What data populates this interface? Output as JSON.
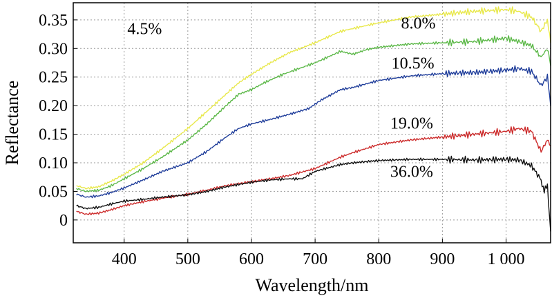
{
  "chart_data": {
    "type": "line",
    "xlabel": "Wavelength/nm",
    "ylabel": "Reflectance",
    "xlim": [
      320,
      1070
    ],
    "ylim": [
      -0.04,
      0.38
    ],
    "grid": true,
    "grid_style": "dotted",
    "x_ticks": [
      400,
      500,
      600,
      700,
      800,
      900,
      1000
    ],
    "x_tick_labels": [
      "400",
      "500",
      "600",
      "700",
      "800",
      "900",
      "1 000"
    ],
    "y_ticks": [
      0,
      0.05,
      0.1,
      0.15,
      0.2,
      0.25,
      0.3,
      0.35
    ],
    "y_tick_labels": [
      "0",
      "0.05",
      "0.10",
      "0.15",
      "0.20",
      "0.25",
      "0.30",
      "0.35"
    ],
    "series": [
      {
        "name": "4.5%",
        "color": "#e8e84a",
        "label_anchor": [
          405,
          0.325
        ],
        "x": [
          325,
          340,
          360,
          380,
          400,
          430,
          460,
          500,
          530,
          560,
          580,
          600,
          630,
          660,
          700,
          740,
          760,
          780,
          800,
          850,
          900,
          950,
          1000,
          1020,
          1040,
          1055,
          1065,
          1070
        ],
        "y": [
          0.06,
          0.055,
          0.058,
          0.068,
          0.08,
          0.1,
          0.125,
          0.16,
          0.19,
          0.22,
          0.24,
          0.255,
          0.275,
          0.293,
          0.31,
          0.33,
          0.335,
          0.34,
          0.345,
          0.355,
          0.36,
          0.365,
          0.368,
          0.365,
          0.355,
          0.33,
          0.35,
          0.31
        ]
      },
      {
        "name": "8.0%",
        "color": "#5cb848",
        "label_anchor": [
          835,
          0.335
        ],
        "x": [
          325,
          340,
          360,
          380,
          400,
          430,
          460,
          500,
          530,
          560,
          580,
          600,
          620,
          650,
          700,
          740,
          760,
          780,
          800,
          850,
          900,
          950,
          1000,
          1020,
          1040,
          1055,
          1065,
          1070
        ],
        "y": [
          0.055,
          0.05,
          0.052,
          0.06,
          0.072,
          0.09,
          0.11,
          0.14,
          0.168,
          0.2,
          0.22,
          0.228,
          0.24,
          0.255,
          0.275,
          0.295,
          0.29,
          0.298,
          0.302,
          0.308,
          0.31,
          0.312,
          0.318,
          0.312,
          0.305,
          0.285,
          0.3,
          0.27
        ]
      },
      {
        "name": "10.5%",
        "color": "#1f3d9a",
        "label_anchor": [
          820,
          0.265
        ],
        "x": [
          325,
          340,
          360,
          380,
          400,
          430,
          460,
          500,
          530,
          560,
          580,
          600,
          630,
          660,
          690,
          710,
          740,
          760,
          780,
          800,
          850,
          900,
          950,
          1000,
          1020,
          1040,
          1055,
          1065,
          1070
        ],
        "y": [
          0.045,
          0.04,
          0.042,
          0.048,
          0.056,
          0.07,
          0.085,
          0.1,
          0.12,
          0.145,
          0.16,
          0.168,
          0.176,
          0.185,
          0.195,
          0.21,
          0.228,
          0.232,
          0.238,
          0.244,
          0.252,
          0.256,
          0.258,
          0.262,
          0.265,
          0.26,
          0.235,
          0.25,
          0.2
        ]
      },
      {
        "name": "19.0%",
        "color": "#cc2a2a",
        "label_anchor": [
          818,
          0.16
        ],
        "x": [
          325,
          340,
          360,
          380,
          400,
          430,
          460,
          500,
          530,
          560,
          600,
          630,
          660,
          700,
          740,
          760,
          780,
          800,
          850,
          900,
          950,
          1000,
          1020,
          1040,
          1055,
          1065,
          1070
        ],
        "y": [
          0.015,
          0.01,
          0.012,
          0.018,
          0.025,
          0.032,
          0.038,
          0.045,
          0.052,
          0.06,
          0.067,
          0.072,
          0.078,
          0.09,
          0.11,
          0.118,
          0.125,
          0.132,
          0.14,
          0.145,
          0.15,
          0.155,
          0.16,
          0.155,
          0.12,
          0.14,
          0.13
        ]
      },
      {
        "name": "36.0%",
        "color": "#111111",
        "label_anchor": [
          818,
          0.075
        ],
        "x": [
          325,
          340,
          360,
          380,
          400,
          430,
          460,
          500,
          530,
          560,
          600,
          630,
          660,
          680,
          700,
          740,
          760,
          780,
          800,
          850,
          900,
          950,
          1000,
          1020,
          1040,
          1055,
          1060,
          1065,
          1070
        ],
        "y": [
          0.025,
          0.02,
          0.022,
          0.028,
          0.033,
          0.036,
          0.04,
          0.044,
          0.05,
          0.058,
          0.066,
          0.07,
          0.072,
          0.072,
          0.085,
          0.097,
          0.1,
          0.102,
          0.104,
          0.106,
          0.106,
          0.105,
          0.106,
          0.105,
          0.095,
          0.07,
          0.05,
          0.06,
          -0.02
        ]
      }
    ]
  }
}
